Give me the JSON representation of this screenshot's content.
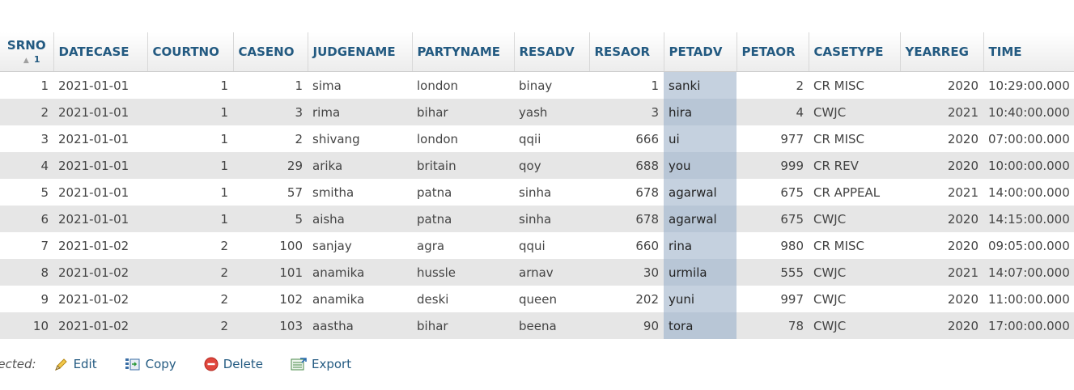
{
  "columns": [
    {
      "label": "SRNO",
      "sort_order": "1"
    },
    {
      "label": "DATECASE"
    },
    {
      "label": "COURTNO"
    },
    {
      "label": "CASENO"
    },
    {
      "label": "JUDGENAME"
    },
    {
      "label": "PARTYNAME"
    },
    {
      "label": "RESADV"
    },
    {
      "label": "RESAOR"
    },
    {
      "label": "PETADV"
    },
    {
      "label": "PETAOR"
    },
    {
      "label": "CASETYPE"
    },
    {
      "label": "YEARREG"
    },
    {
      "label": "TIME"
    }
  ],
  "rows": [
    [
      "1",
      "2021-01-01",
      "1",
      "1",
      "sima",
      "london",
      "binay",
      "1",
      "sanki",
      "2",
      "CR MISC",
      "2020",
      "10:29:00.000"
    ],
    [
      "2",
      "2021-01-01",
      "1",
      "3",
      "rima",
      "bihar",
      "yash",
      "3",
      "hira",
      "4",
      "CWJC",
      "2021",
      "10:40:00.000"
    ],
    [
      "3",
      "2021-01-01",
      "1",
      "2",
      "shivang",
      "london",
      "qqii",
      "666",
      "ui",
      "977",
      "CR MISC",
      "2020",
      "07:00:00.000"
    ],
    [
      "4",
      "2021-01-01",
      "1",
      "29",
      "arika",
      "britain",
      "qoy",
      "688",
      "you",
      "999",
      "CR REV",
      "2020",
      "10:00:00.000"
    ],
    [
      "5",
      "2021-01-01",
      "1",
      "57",
      "smitha",
      "patna",
      "sinha",
      "678",
      "agarwal",
      "675",
      "CR APPEAL",
      "2021",
      "14:00:00.000"
    ],
    [
      "6",
      "2021-01-01",
      "1",
      "5",
      "aisha",
      "patna",
      "sinha",
      "678",
      "agarwal",
      "675",
      "CWJC",
      "2020",
      "14:15:00.000"
    ],
    [
      "7",
      "2021-01-02",
      "2",
      "100",
      "sanjay",
      "agra",
      "qqui",
      "660",
      "rina",
      "980",
      "CR MISC",
      "2020",
      "09:05:00.000"
    ],
    [
      "8",
      "2021-01-02",
      "2",
      "101",
      "anamika",
      "hussle",
      "arnav",
      "30",
      "urmila",
      "555",
      "CWJC",
      "2021",
      "14:07:00.000"
    ],
    [
      "9",
      "2021-01-02",
      "2",
      "102",
      "anamika",
      "deski",
      "queen",
      "202",
      "yuni",
      "997",
      "CWJC",
      "2020",
      "11:00:00.000"
    ],
    [
      "10",
      "2021-01-02",
      "2",
      "103",
      "aastha",
      "bihar",
      "beena",
      "90",
      "tora",
      "78",
      "CWJC",
      "2020",
      "17:00:00.000"
    ]
  ],
  "selected_column": "PETADV",
  "actions": {
    "with_selected": "elected:",
    "edit": "Edit",
    "copy": "Copy",
    "delete": "Delete",
    "export": "Export"
  },
  "icons": {
    "edit": "pencil-icon",
    "copy": "copy-icon",
    "delete": "delete-icon",
    "export": "export-icon"
  },
  "colors": {
    "header_text": "#235a81",
    "row_even": "#e6e6e6",
    "selected_column": "#c5d1df"
  }
}
